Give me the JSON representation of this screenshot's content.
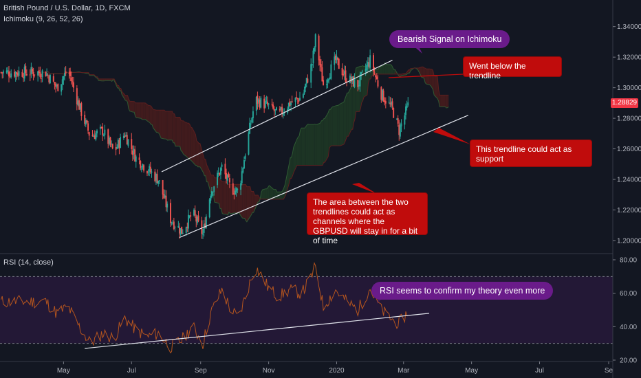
{
  "header": {
    "title": "British Pound / U.S. Dollar, 1D, FXCM",
    "indicator": "Ichimoku (9, 26, 52, 26)",
    "rsi_label": "RSI (14, close)",
    "last_price": "1.28829"
  },
  "annotations": {
    "bearish": "Bearish Signal on Ichimoku",
    "below": "Went below the trendline",
    "support": "This trendline could act as support",
    "channel": "The area between the two trendlines could act as channels where the GBPUSD will stay in for a bit of time",
    "rsi": "RSI seems to confirm my theory even more"
  },
  "colors": {
    "background": "#131722",
    "up": "#26a69a",
    "down": "#ef5350",
    "cloud_bull": "#1e3a24",
    "cloud_bear": "#4a1c1c",
    "rsi_line": "#b5551e",
    "rsi_band": "#2a1a3e",
    "callout_red": "#c00c0c",
    "callout_purple": "#6a1b8a"
  },
  "chart_data": [
    {
      "type": "candlestick",
      "title": "British Pound / U.S. Dollar, 1D, FXCM",
      "y_ticks": [
        "1.34000",
        "1.32000",
        "1.30000",
        "1.28000",
        "1.26000",
        "1.24000",
        "1.22000",
        "1.20000"
      ],
      "ylim": [
        1.191,
        1.352
      ],
      "x_ticks": [
        "May",
        "Jul",
        "Sep",
        "Nov",
        "2020",
        "Mar",
        "May",
        "Jul",
        "Se"
      ],
      "last_price": 1.28829,
      "close_path": [
        [
          "2019-04-15",
          1.31
        ],
        [
          "2019-04-25",
          1.3
        ],
        [
          "2019-05-05",
          1.312
        ],
        [
          "2019-05-15",
          1.288
        ],
        [
          "2019-05-25",
          1.268
        ],
        [
          "2019-06-05",
          1.272
        ],
        [
          "2019-06-15",
          1.258
        ],
        [
          "2019-06-25",
          1.27
        ],
        [
          "2019-07-05",
          1.254
        ],
        [
          "2019-07-15",
          1.247
        ],
        [
          "2019-07-25",
          1.24
        ],
        [
          "2019-08-05",
          1.214
        ],
        [
          "2019-08-15",
          1.206
        ],
        [
          "2019-08-25",
          1.218
        ],
        [
          "2019-09-03",
          1.204
        ],
        [
          "2019-09-10",
          1.232
        ],
        [
          "2019-09-20",
          1.248
        ],
        [
          "2019-09-28",
          1.234
        ],
        [
          "2019-10-05",
          1.232
        ],
        [
          "2019-10-12",
          1.262
        ],
        [
          "2019-10-20",
          1.292
        ],
        [
          "2019-11-01",
          1.288
        ],
        [
          "2019-11-10",
          1.282
        ],
        [
          "2019-11-20",
          1.29
        ],
        [
          "2019-12-01",
          1.294
        ],
        [
          "2019-12-10",
          1.316
        ],
        [
          "2019-12-13",
          1.332
        ],
        [
          "2019-12-20",
          1.302
        ],
        [
          "2019-12-31",
          1.318
        ],
        [
          "2020-01-10",
          1.306
        ],
        [
          "2020-01-20",
          1.302
        ],
        [
          "2020-01-31",
          1.318
        ],
        [
          "2020-02-10",
          1.296
        ],
        [
          "2020-02-20",
          1.286
        ],
        [
          "2020-02-26",
          1.272
        ],
        [
          "2020-03-05",
          1.288
        ]
      ],
      "trendlines": [
        {
          "name": "upper",
          "from": [
            "2019-07-28",
            1.245
          ],
          "to": [
            "2020-02-20",
            1.318
          ]
        },
        {
          "name": "lower",
          "from": [
            "2019-08-13",
            1.202
          ],
          "to": [
            "2020-04-28",
            1.282
          ]
        }
      ]
    },
    {
      "type": "line",
      "title": "RSI (14, close)",
      "y_ticks": [
        "80.00",
        "60.00",
        "40.00",
        "20.00"
      ],
      "ylim": [
        20,
        80
      ],
      "bands": [
        30,
        70
      ],
      "rsi_path": [
        [
          "2019-04-15",
          55
        ],
        [
          "2019-04-25",
          48
        ],
        [
          "2019-05-05",
          52
        ],
        [
          "2019-05-15",
          40
        ],
        [
          "2019-05-25",
          30
        ],
        [
          "2019-06-05",
          36
        ],
        [
          "2019-06-15",
          33
        ],
        [
          "2019-06-25",
          45
        ],
        [
          "2019-07-05",
          38
        ],
        [
          "2019-07-15",
          34
        ],
        [
          "2019-07-25",
          36
        ],
        [
          "2019-08-05",
          28
        ],
        [
          "2019-08-15",
          32
        ],
        [
          "2019-08-25",
          40
        ],
        [
          "2019-09-03",
          30
        ],
        [
          "2019-09-10",
          48
        ],
        [
          "2019-09-20",
          62
        ],
        [
          "2019-09-28",
          50
        ],
        [
          "2019-10-05",
          45
        ],
        [
          "2019-10-12",
          60
        ],
        [
          "2019-10-20",
          76
        ],
        [
          "2019-11-01",
          63
        ],
        [
          "2019-11-10",
          58
        ],
        [
          "2019-11-20",
          62
        ],
        [
          "2019-12-01",
          60
        ],
        [
          "2019-12-10",
          71
        ],
        [
          "2019-12-13",
          76
        ],
        [
          "2019-12-20",
          52
        ],
        [
          "2019-12-31",
          62
        ],
        [
          "2020-01-10",
          55
        ],
        [
          "2020-01-20",
          50
        ],
        [
          "2020-01-31",
          63
        ],
        [
          "2020-02-10",
          50
        ],
        [
          "2020-02-20",
          44
        ],
        [
          "2020-02-26",
          42
        ],
        [
          "2020-03-05",
          49
        ]
      ],
      "trendline": {
        "from": [
          "2019-05-20",
          27
        ],
        "to": [
          "2020-03-24",
          48
        ]
      }
    }
  ]
}
